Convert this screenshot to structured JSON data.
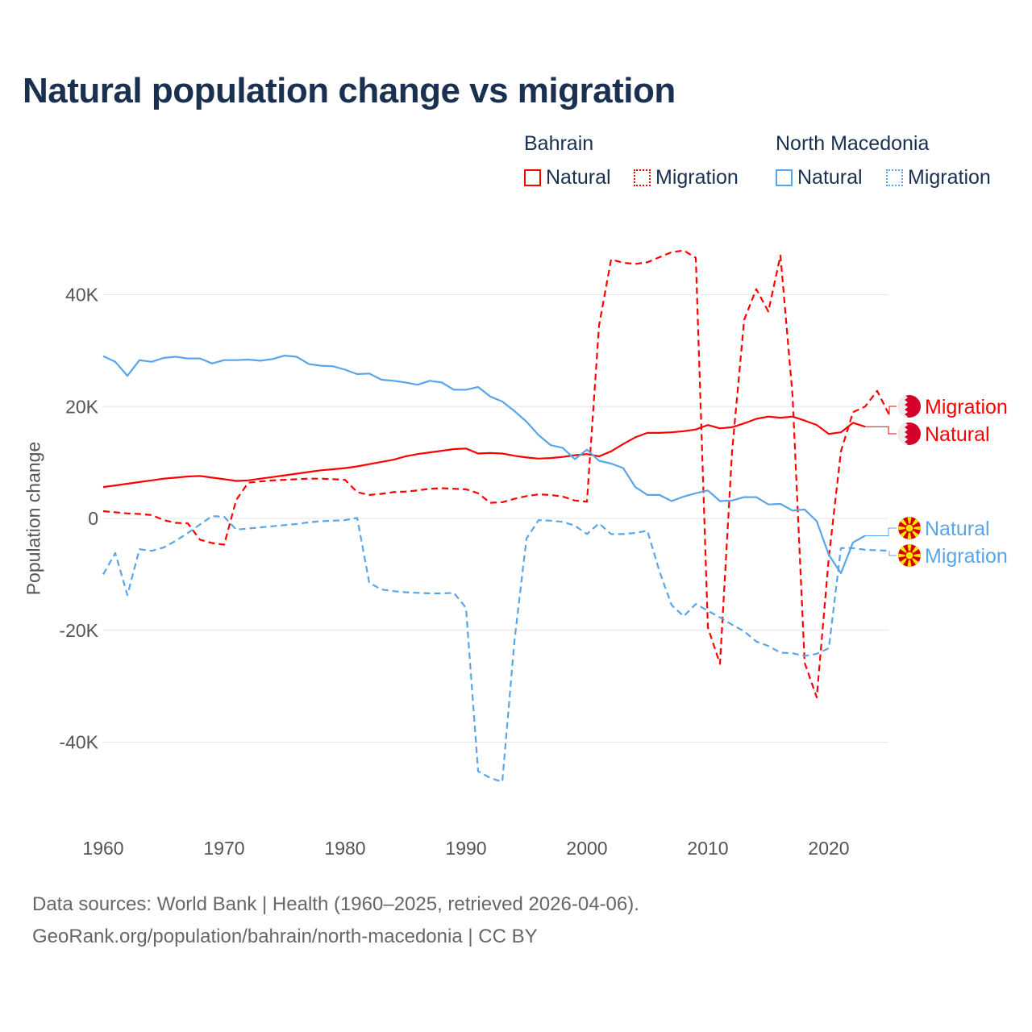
{
  "chart_data": {
    "type": "line",
    "title": "Natural population change vs migration",
    "ylabel": "Population change",
    "xlabel": "",
    "xlim": [
      1960,
      2025
    ],
    "ylim": [
      -52000,
      50000
    ],
    "x_ticks": [
      1960,
      1970,
      1980,
      1990,
      2000,
      2010,
      2020
    ],
    "x_tick_labels": [
      "1960",
      "1970",
      "1980",
      "1990",
      "2000",
      "2010",
      "2020"
    ],
    "y_ticks": [
      40000,
      20000,
      0,
      -20000,
      -40000
    ],
    "y_tick_labels": [
      "40K",
      "20K",
      "0",
      "-20K",
      "-40K"
    ],
    "grid": true,
    "legend_groups": [
      {
        "name": "Bahrain",
        "items": [
          "Natural",
          "Migration"
        ]
      },
      {
        "name": "North Macedonia",
        "items": [
          "Natural",
          "Migration"
        ]
      }
    ],
    "legend_placement": "top-right",
    "series": [
      {
        "name": "Natural",
        "group": "Bahrain",
        "color": "#ff0000",
        "dash": false,
        "start": 1960,
        "values": [
          5600,
          5900,
          6200,
          6500,
          6800,
          7100,
          7300,
          7500,
          7600,
          7300,
          7000,
          6700,
          6800,
          7100,
          7400,
          7700,
          8000,
          8300,
          8600,
          8800,
          9000,
          9300,
          9700,
          10100,
          10500,
          11100,
          11500,
          11800,
          12100,
          12400,
          12500,
          11600,
          11700,
          11600,
          11200,
          10900,
          10700,
          10800,
          11000,
          11300,
          11500,
          11100,
          12000,
          13300,
          14500,
          15300,
          15300,
          15400,
          15600,
          15900,
          16700,
          16100,
          16300,
          17000,
          17800,
          18200,
          18000,
          18200,
          17500,
          16700,
          15100,
          15400,
          17100,
          16400
        ]
      },
      {
        "name": "Migration",
        "group": "Bahrain",
        "color": "#ff0000",
        "dash": true,
        "start": 1960,
        "values": [
          1300,
          1100,
          900,
          800,
          600,
          -300,
          -800,
          -900,
          -3800,
          -4400,
          -4700,
          3300,
          6400,
          6600,
          6800,
          6900,
          7000,
          7100,
          7100,
          7000,
          6900,
          4700,
          4200,
          4400,
          4700,
          4800,
          5000,
          5300,
          5400,
          5300,
          5200,
          4500,
          2800,
          2900,
          3500,
          4000,
          4300,
          4200,
          3900,
          3200,
          3000,
          34500,
          46300,
          45700,
          45500,
          45800,
          46700,
          47600,
          47900,
          46600,
          -19500,
          -26000,
          12000,
          35500,
          41000,
          37000,
          47000,
          22000,
          -25800,
          -32000,
          -7000,
          12000,
          19000,
          20000,
          22800,
          18500
        ]
      },
      {
        "name": "Natural",
        "group": "North Macedonia",
        "color": "#5aa5e8",
        "dash": false,
        "start": 1960,
        "values": [
          29000,
          28000,
          25500,
          28300,
          28000,
          28700,
          28900,
          28600,
          28600,
          27700,
          28300,
          28300,
          28400,
          28200,
          28500,
          29100,
          28900,
          27600,
          27300,
          27200,
          26600,
          25800,
          25900,
          24800,
          24600,
          24300,
          23900,
          24600,
          24300,
          23000,
          23000,
          23500,
          21800,
          20900,
          19200,
          17300,
          14900,
          13100,
          12600,
          10600,
          12300,
          10300,
          9800,
          9000,
          5600,
          4200,
          4200,
          3100,
          3900,
          4500,
          5000,
          3100,
          3200,
          3800,
          3800,
          2500,
          2600,
          1400,
          1600,
          -500,
          -6500,
          -9800,
          -4300,
          -3100
        ]
      },
      {
        "name": "Migration",
        "group": "North Macedonia",
        "color": "#5aa5e8",
        "dash": true,
        "start": 1960,
        "values": [
          -10000,
          -6200,
          -13700,
          -5500,
          -5800,
          -5200,
          -4000,
          -2600,
          -1100,
          400,
          300,
          -2000,
          -1800,
          -1600,
          -1400,
          -1200,
          -1000,
          -700,
          -500,
          -400,
          -300,
          100,
          -11500,
          -12700,
          -13000,
          -13200,
          -13300,
          -13400,
          -13400,
          -13300,
          -16000,
          -45200,
          -46400,
          -47100,
          -22000,
          -3600,
          -300,
          -400,
          -600,
          -1300,
          -2800,
          -900,
          -2800,
          -2800,
          -2600,
          -2200,
          -9500,
          -15500,
          -17500,
          -15300,
          -16500,
          -17700,
          -19000,
          -20200,
          -22000,
          -22800,
          -24000,
          -24100,
          -24600,
          -24200,
          -23200,
          -5300,
          -5300,
          -5600,
          -5700,
          -5800
        ]
      }
    ]
  },
  "footer": {
    "line1": "Data sources: World Bank | Health (1960–2025, retrieved 2026-04-06).",
    "line2": "GeoRank.org/population/bahrain/north-macedonia | CC BY"
  }
}
